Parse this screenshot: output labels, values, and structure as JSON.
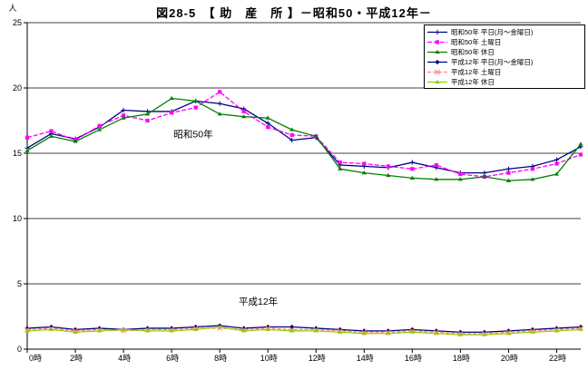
{
  "title": "図28-5　【 助　産　所 】－昭和50・平成12年－",
  "chart_data": {
    "type": "line",
    "title": "図28-5　【 助　産　所 】－昭和50・平成12年－",
    "xlabel": "",
    "ylabel": "人",
    "ylim": [
      0,
      25
    ],
    "yticks": [
      0,
      5,
      10,
      15,
      20,
      25
    ],
    "xtick_hours": [
      0,
      2,
      4,
      6,
      8,
      10,
      12,
      14,
      16,
      18,
      20,
      22
    ],
    "xtick_labels": [
      "0時",
      "2時",
      "4時",
      "6時",
      "8時",
      "10時",
      "12時",
      "14時",
      "16時",
      "18時",
      "20時",
      "22時"
    ],
    "grid": "horizontal",
    "legend_position": "top-right",
    "annotations": [
      {
        "text": "昭和50年",
        "h": 6.9,
        "v": 16.2
      },
      {
        "text": "平成12年",
        "h": 9.6,
        "v": 3.4
      }
    ],
    "series": [
      {
        "name": "昭和50年 平日(月～金曜日)",
        "color": "#000080",
        "dash": "",
        "marker": "plus",
        "values": [
          15.4,
          16.5,
          16.1,
          17.0,
          18.3,
          18.2,
          18.2,
          19.0,
          18.8,
          18.4,
          17.3,
          16.0,
          16.2,
          14.1,
          14.0,
          13.9,
          14.3,
          13.9,
          13.5,
          13.5,
          13.8,
          14.0,
          14.5,
          15.5
        ]
      },
      {
        "name": "昭和50年 土曜日",
        "color": "#FF00FF",
        "dash": "5,2",
        "marker": "square",
        "values": [
          16.2,
          16.7,
          16.0,
          17.1,
          17.9,
          17.5,
          18.1,
          18.5,
          19.7,
          18.2,
          17.0,
          16.4,
          16.3,
          14.3,
          14.2,
          14.0,
          13.8,
          14.1,
          13.4,
          13.2,
          13.5,
          13.8,
          14.2,
          14.9
        ]
      },
      {
        "name": "昭和50年 休日",
        "color": "#008000",
        "dash": "",
        "marker": "triangle",
        "values": [
          15.2,
          16.3,
          15.9,
          16.8,
          17.7,
          18.0,
          19.2,
          19.0,
          18.0,
          17.8,
          17.7,
          16.8,
          16.3,
          13.8,
          13.5,
          13.3,
          13.1,
          13.0,
          13.0,
          13.2,
          12.9,
          13.0,
          13.4,
          15.7
        ]
      },
      {
        "name": "平成12年 平日(月～金曜日)",
        "color": "#000080",
        "dash": "",
        "marker": "diamond",
        "values": [
          1.6,
          1.7,
          1.5,
          1.6,
          1.5,
          1.6,
          1.6,
          1.7,
          1.8,
          1.6,
          1.7,
          1.7,
          1.6,
          1.5,
          1.4,
          1.4,
          1.5,
          1.4,
          1.3,
          1.3,
          1.4,
          1.5,
          1.6,
          1.7
        ]
      },
      {
        "name": "平成12年 土曜日",
        "color": "#FF8080",
        "dash": "4,2",
        "marker": "x",
        "values": [
          1.5,
          1.6,
          1.4,
          1.5,
          1.4,
          1.5,
          1.5,
          1.6,
          1.6,
          1.5,
          1.6,
          1.5,
          1.5,
          1.4,
          1.3,
          1.3,
          1.4,
          1.3,
          1.2,
          1.2,
          1.3,
          1.4,
          1.5,
          1.6
        ]
      },
      {
        "name": "平成12年 休日",
        "color": "#99CC00",
        "dash": "",
        "marker": "triangle",
        "values": [
          1.4,
          1.5,
          1.3,
          1.4,
          1.5,
          1.4,
          1.4,
          1.5,
          1.7,
          1.4,
          1.5,
          1.4,
          1.4,
          1.3,
          1.2,
          1.2,
          1.3,
          1.2,
          1.1,
          1.1,
          1.2,
          1.3,
          1.4,
          1.5
        ]
      }
    ]
  }
}
